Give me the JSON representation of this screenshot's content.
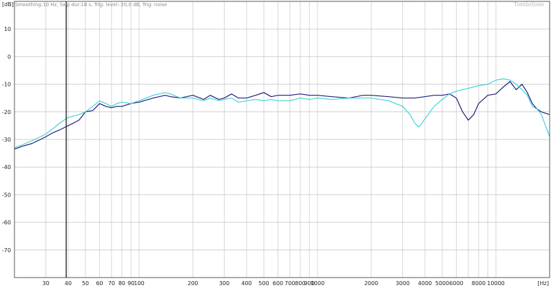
{
  "header": {
    "settings_text": "Smoothing:10 Hz, Swp dur:18 s, Trig. level:-20,0 dB, Trig: noise",
    "watermark": "Tombstone"
  },
  "chart_data": {
    "type": "line",
    "title": "",
    "xlabel": "",
    "ylabel": "",
    "x_unit": "[Hz]",
    "y_unit": "[dB]",
    "x_scale": "log",
    "xlim": [
      20,
      20000
    ],
    "ylim": [
      -80,
      20
    ],
    "grid": true,
    "x_ticks": [
      {
        "value": 30,
        "label": "30"
      },
      {
        "value": 40,
        "label": "40"
      },
      {
        "value": 50,
        "label": "50"
      },
      {
        "value": 60,
        "label": "60"
      },
      {
        "value": 70,
        "label": "70"
      },
      {
        "value": 80,
        "label": "80"
      },
      {
        "value": 90,
        "label": "90"
      },
      {
        "value": 100,
        "label": "100"
      },
      {
        "value": 200,
        "label": "200"
      },
      {
        "value": 300,
        "label": "300"
      },
      {
        "value": 400,
        "label": "400"
      },
      {
        "value": 500,
        "label": "500"
      },
      {
        "value": 600,
        "label": "600"
      },
      {
        "value": 700,
        "label": "700"
      },
      {
        "value": 800,
        "label": "800"
      },
      {
        "value": 900,
        "label": "900"
      },
      {
        "value": 1000,
        "label": "1000"
      },
      {
        "value": 2000,
        "label": "2000"
      },
      {
        "value": 3000,
        "label": "3000"
      },
      {
        "value": 4000,
        "label": "4000"
      },
      {
        "value": 5000,
        "label": "5000"
      },
      {
        "value": 6000,
        "label": "6000"
      },
      {
        "value": 8000,
        "label": "8000"
      },
      {
        "value": 10000,
        "label": "10000"
      }
    ],
    "y_ticks": [
      {
        "value": 10,
        "label": "10"
      },
      {
        "value": 0,
        "label": "0"
      },
      {
        "value": -10,
        "label": "-10"
      },
      {
        "value": -20,
        "label": "-20"
      },
      {
        "value": -30,
        "label": "-30"
      },
      {
        "value": -40,
        "label": "-40"
      },
      {
        "value": -50,
        "label": "-50"
      },
      {
        "value": -60,
        "label": "-60"
      },
      {
        "value": -70,
        "label": "-70"
      }
    ],
    "series": [
      {
        "color": "#1a1a7a",
        "points": [
          [
            20,
            -33.5
          ],
          [
            22,
            -32.5
          ],
          [
            25,
            -31.5
          ],
          [
            28,
            -30
          ],
          [
            30,
            -29
          ],
          [
            33,
            -27.5
          ],
          [
            36,
            -26.5
          ],
          [
            40,
            -25
          ],
          [
            43,
            -24
          ],
          [
            46,
            -23
          ],
          [
            50,
            -20
          ],
          [
            55,
            -19.5
          ],
          [
            60,
            -17
          ],
          [
            65,
            -18
          ],
          [
            70,
            -18.5
          ],
          [
            75,
            -18
          ],
          [
            80,
            -18
          ],
          [
            90,
            -17
          ],
          [
            100,
            -16.5
          ],
          [
            120,
            -15
          ],
          [
            140,
            -14
          ],
          [
            150,
            -14.5
          ],
          [
            170,
            -15
          ],
          [
            200,
            -14
          ],
          [
            230,
            -15.5
          ],
          [
            250,
            -14
          ],
          [
            280,
            -15.5
          ],
          [
            300,
            -15
          ],
          [
            330,
            -13.5
          ],
          [
            360,
            -15
          ],
          [
            400,
            -15
          ],
          [
            450,
            -14
          ],
          [
            500,
            -13
          ],
          [
            550,
            -14.5
          ],
          [
            600,
            -14
          ],
          [
            700,
            -14
          ],
          [
            800,
            -13.5
          ],
          [
            900,
            -14
          ],
          [
            1000,
            -14
          ],
          [
            1200,
            -14.5
          ],
          [
            1500,
            -15
          ],
          [
            1800,
            -14
          ],
          [
            2000,
            -14
          ],
          [
            2500,
            -14.5
          ],
          [
            3000,
            -15
          ],
          [
            3500,
            -15
          ],
          [
            4000,
            -14.5
          ],
          [
            4500,
            -14
          ],
          [
            5000,
            -14
          ],
          [
            5500,
            -13.5
          ],
          [
            6000,
            -15
          ],
          [
            6500,
            -20
          ],
          [
            7000,
            -23
          ],
          [
            7500,
            -21
          ],
          [
            8000,
            -17
          ],
          [
            9000,
            -14
          ],
          [
            10000,
            -13.5
          ],
          [
            11000,
            -11
          ],
          [
            12000,
            -9
          ],
          [
            13000,
            -12
          ],
          [
            14000,
            -10
          ],
          [
            15000,
            -13
          ],
          [
            16000,
            -17
          ],
          [
            17000,
            -19
          ],
          [
            18000,
            -20
          ],
          [
            20000,
            -21
          ]
        ]
      },
      {
        "color": "#40d0d8",
        "points": [
          [
            20,
            -33
          ],
          [
            22,
            -32
          ],
          [
            25,
            -30.5
          ],
          [
            28,
            -29
          ],
          [
            30,
            -28
          ],
          [
            33,
            -26
          ],
          [
            36,
            -24
          ],
          [
            40,
            -22
          ],
          [
            43,
            -21.5
          ],
          [
            46,
            -21
          ],
          [
            50,
            -20
          ],
          [
            55,
            -18
          ],
          [
            60,
            -16
          ],
          [
            65,
            -17
          ],
          [
            70,
            -18
          ],
          [
            75,
            -17
          ],
          [
            80,
            -16.5
          ],
          [
            90,
            -17
          ],
          [
            100,
            -16
          ],
          [
            120,
            -14
          ],
          [
            140,
            -13
          ],
          [
            150,
            -13.5
          ],
          [
            170,
            -15
          ],
          [
            200,
            -15
          ],
          [
            230,
            -16
          ],
          [
            250,
            -15
          ],
          [
            280,
            -16
          ],
          [
            300,
            -15.5
          ],
          [
            330,
            -15
          ],
          [
            360,
            -16.5
          ],
          [
            400,
            -16
          ],
          [
            450,
            -15.5
          ],
          [
            500,
            -16
          ],
          [
            550,
            -15.5
          ],
          [
            600,
            -16
          ],
          [
            700,
            -16
          ],
          [
            800,
            -15
          ],
          [
            900,
            -15.5
          ],
          [
            1000,
            -15
          ],
          [
            1200,
            -15.5
          ],
          [
            1500,
            -15
          ],
          [
            1800,
            -15
          ],
          [
            2000,
            -15
          ],
          [
            2500,
            -16
          ],
          [
            3000,
            -18
          ],
          [
            3300,
            -21
          ],
          [
            3500,
            -24
          ],
          [
            3700,
            -25.5
          ],
          [
            4000,
            -22.5
          ],
          [
            4500,
            -18
          ],
          [
            5000,
            -15.5
          ],
          [
            5500,
            -13.5
          ],
          [
            6000,
            -12.5
          ],
          [
            6500,
            -12
          ],
          [
            7000,
            -11.5
          ],
          [
            7500,
            -11
          ],
          [
            8000,
            -10.5
          ],
          [
            9000,
            -10
          ],
          [
            10000,
            -8.5
          ],
          [
            11000,
            -8
          ],
          [
            12000,
            -8.5
          ],
          [
            13000,
            -10
          ],
          [
            14000,
            -12
          ],
          [
            15000,
            -14
          ],
          [
            16000,
            -18
          ],
          [
            17000,
            -19
          ],
          [
            18000,
            -21
          ],
          [
            20000,
            -29
          ]
        ]
      }
    ]
  }
}
